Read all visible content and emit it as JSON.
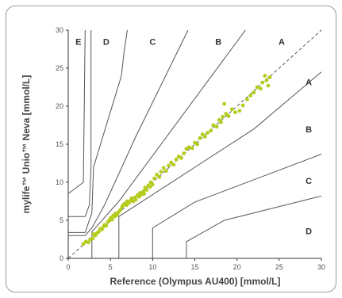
{
  "chart_data": {
    "type": "scatter",
    "xlabel": "Reference (Olympus AU400) [mmol/L]",
    "ylabel": "mylife™ Unio™ Neva [mmol/L]",
    "xlim": [
      0,
      30
    ],
    "ylim": [
      0,
      30
    ],
    "x_ticks": [
      "0",
      "5",
      "10",
      "15",
      "20",
      "25",
      "30"
    ],
    "y_ticks": [
      "0",
      "5",
      "10",
      "15",
      "20",
      "25",
      "30"
    ],
    "grid": false,
    "point_color": "#b5cc1e",
    "line_color": "#555555",
    "identity_line": {
      "from": [
        0,
        0
      ],
      "to": [
        30,
        30
      ],
      "style": "dashed"
    },
    "zones_top": [
      {
        "label": "E",
        "x": 1.2,
        "y": 28.5
      },
      {
        "label": "D",
        "x": 4.5,
        "y": 28.5
      },
      {
        "label": "C",
        "x": 10.0,
        "y": 28.5
      },
      {
        "label": "B",
        "x": 17.8,
        "y": 28.5
      },
      {
        "label": "A",
        "x": 25.3,
        "y": 28.5
      }
    ],
    "zones_right": [
      {
        "label": "A",
        "x": 28.5,
        "y": 23.2
      },
      {
        "label": "B",
        "x": 28.5,
        "y": 17.0
      },
      {
        "label": "C",
        "x": 28.5,
        "y": 10.2
      },
      {
        "label": "D",
        "x": 28.5,
        "y": 3.6
      }
    ],
    "boundaries": [
      [
        [
          2.0,
          30.0
        ],
        [
          1.8,
          10.0
        ],
        [
          0,
          8.5
        ]
      ],
      [
        [
          2.7,
          30.0
        ],
        [
          2.7,
          12.0
        ],
        [
          2.5,
          7.0
        ],
        [
          2.0,
          5.5
        ],
        [
          0,
          5.5
        ]
      ],
      [
        [
          7.0,
          30.0
        ],
        [
          6.6,
          27.0
        ],
        [
          6.3,
          24.0
        ],
        [
          3.0,
          12.0
        ],
        [
          2.8,
          6.0
        ],
        [
          2.0,
          3.4
        ],
        [
          0,
          3.4
        ]
      ],
      [
        [
          14.2,
          30.0
        ],
        [
          8.0,
          16.0
        ],
        [
          4.3,
          7.0
        ],
        [
          2.8,
          4.0
        ],
        [
          2.0,
          3.0
        ],
        [
          0,
          3.0
        ]
      ],
      [
        [
          21.0,
          30.0
        ],
        [
          15.0,
          21.0
        ],
        [
          6.0,
          7.5
        ],
        [
          2.8,
          3.5
        ],
        [
          2.8,
          0
        ]
      ],
      [
        [
          30.0,
          24.5
        ],
        [
          22.0,
          17.0
        ],
        [
          6.0,
          5.5
        ],
        [
          6.0,
          0
        ]
      ],
      [
        [
          30.0,
          13.7
        ],
        [
          15.0,
          7.4
        ],
        [
          10.0,
          4.0
        ],
        [
          10.0,
          0
        ]
      ],
      [
        [
          30.0,
          8.2
        ],
        [
          18.5,
          5.0
        ],
        [
          14.0,
          2.2
        ],
        [
          14.0,
          0
        ]
      ]
    ],
    "points": [
      [
        1.8,
        1.9
      ],
      [
        2.1,
        2.2
      ],
      [
        2.4,
        2.1
      ],
      [
        2.6,
        2.5
      ],
      [
        2.9,
        2.6
      ],
      [
        3.0,
        3.2
      ],
      [
        3.2,
        3.0
      ],
      [
        3.4,
        3.3
      ],
      [
        3.6,
        3.5
      ],
      [
        3.8,
        3.9
      ],
      [
        4.0,
        3.8
      ],
      [
        4.2,
        4.2
      ],
      [
        4.3,
        4.4
      ],
      [
        4.5,
        4.3
      ],
      [
        4.7,
        4.8
      ],
      [
        4.9,
        5.0
      ],
      [
        5.0,
        5.3
      ],
      [
        5.2,
        5.1
      ],
      [
        5.3,
        5.6
      ],
      [
        5.5,
        5.5
      ],
      [
        5.6,
        5.9
      ],
      [
        5.8,
        5.7
      ],
      [
        6.0,
        6.1
      ],
      [
        6.2,
        6.4
      ],
      [
        6.4,
        6.8
      ],
      [
        6.5,
        7.0
      ],
      [
        6.7,
        7.2
      ],
      [
        6.9,
        7.0
      ],
      [
        7.0,
        7.5
      ],
      [
        7.2,
        7.3
      ],
      [
        7.4,
        7.6
      ],
      [
        7.5,
        7.9
      ],
      [
        7.7,
        7.5
      ],
      [
        7.9,
        8.0
      ],
      [
        8.0,
        7.7
      ],
      [
        8.2,
        8.3
      ],
      [
        8.4,
        8.1
      ],
      [
        8.5,
        8.6
      ],
      [
        8.7,
        8.4
      ],
      [
        8.9,
        8.8
      ],
      [
        9.0,
        8.5
      ],
      [
        9.1,
        9.3
      ],
      [
        9.3,
        9.0
      ],
      [
        9.5,
        9.6
      ],
      [
        9.7,
        9.4
      ],
      [
        9.8,
        10.0
      ],
      [
        10.0,
        9.7
      ],
      [
        10.2,
        10.5
      ],
      [
        10.5,
        11.0
      ],
      [
        10.8,
        10.7
      ],
      [
        11.0,
        11.4
      ],
      [
        11.3,
        11.9
      ],
      [
        11.6,
        11.5
      ],
      [
        11.9,
        12.2
      ],
      [
        12.2,
        12.6
      ],
      [
        12.5,
        12.3
      ],
      [
        12.8,
        13.0
      ],
      [
        13.1,
        13.4
      ],
      [
        13.4,
        13.2
      ],
      [
        13.7,
        13.8
      ],
      [
        14.0,
        14.4
      ],
      [
        14.3,
        14.6
      ],
      [
        14.7,
        14.5
      ],
      [
        15.0,
        15.2
      ],
      [
        15.3,
        15.0
      ],
      [
        15.6,
        15.8
      ],
      [
        15.9,
        16.3
      ],
      [
        16.2,
        16.0
      ],
      [
        16.5,
        16.5
      ],
      [
        16.9,
        16.8
      ],
      [
        17.2,
        17.5
      ],
      [
        17.6,
        17.3
      ],
      [
        17.9,
        18.2
      ],
      [
        18.1,
        17.9
      ],
      [
        18.3,
        18.6
      ],
      [
        18.5,
        20.3
      ],
      [
        18.7,
        19.0
      ],
      [
        19.0,
        18.7
      ],
      [
        19.4,
        19.6
      ],
      [
        19.8,
        19.2
      ],
      [
        20.3,
        19.4
      ],
      [
        20.7,
        20.1
      ],
      [
        21.2,
        20.9
      ],
      [
        21.6,
        21.4
      ],
      [
        22.0,
        21.8
      ],
      [
        22.4,
        22.5
      ],
      [
        22.8,
        22.3
      ],
      [
        23.0,
        23.1
      ],
      [
        23.3,
        24.0
      ],
      [
        23.5,
        23.4
      ],
      [
        23.7,
        22.7
      ],
      [
        23.9,
        23.8
      ]
    ]
  }
}
